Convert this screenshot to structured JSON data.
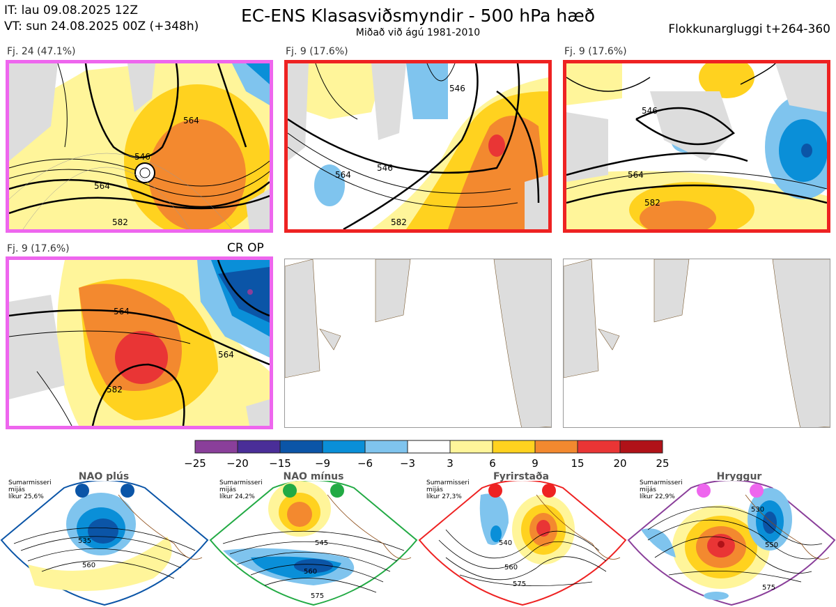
{
  "header": {
    "init": "IT: lau 09.08.2025 12Z",
    "valid": "VT: sun 24.08.2025 00Z  (+348h)",
    "title": "EC-ENS Klasasviðsmyndir - 500 hPa hæð",
    "subtitle": "Miðað við ágú 1981-2010",
    "window": "Flokkunargluggi t+264-360"
  },
  "panels": [
    {
      "label": "Fj. 24 (47.1%)",
      "border": "#ee66ee",
      "contours": [
        "546",
        "564",
        "564",
        "582"
      ]
    },
    {
      "label": "Fj. 9 (17.6%)",
      "border": "#ee2222",
      "contours": [
        "546",
        "546",
        "564",
        "582"
      ]
    },
    {
      "label": "Fj. 9 (17.6%)",
      "border": "#ee2222",
      "contours": [
        "546",
        "564",
        "582"
      ]
    },
    {
      "label": "Fj. 9 (17.6%)",
      "border": "#ee66ee",
      "contours": [
        "564",
        "564",
        "582"
      ],
      "tag": "CR OP"
    }
  ],
  "colorbar": {
    "ticks": [
      "−25",
      "−20",
      "−15",
      "−9",
      "−6",
      "−3",
      "3",
      "6",
      "9",
      "15",
      "20",
      "25"
    ],
    "colors": [
      "#8a3f9a",
      "#4a2e98",
      "#0b55a7",
      "#0a8fd8",
      "#7fc4ee",
      "#ffffff",
      "#fff59a",
      "#ffd21f",
      "#f3892f",
      "#e93535",
      "#b01218"
    ]
  },
  "regimes": [
    {
      "name": "NAO plús",
      "info": "Sumarmisseri\nmijás\nlíkur 25,6%",
      "color": "#0b55a7",
      "labels": [
        "535",
        "560"
      ]
    },
    {
      "name": "NAO mínus",
      "info": "Sumarmisseri\nmijás\nlíkur 24,2%",
      "color": "#22aa44",
      "labels": [
        "545",
        "560",
        "575"
      ]
    },
    {
      "name": "Fyrirstaða",
      "info": "Sumarmisseri\nmijás\nlíkur 27,3%",
      "color": "#ee2222",
      "labels": [
        "540",
        "560",
        "575"
      ]
    },
    {
      "name": "Hryggur",
      "info": "Sumarmisseri\nmijás\nlíkur 22,9%",
      "color": "#ee66ee",
      "labels": [
        "530",
        "550",
        "575"
      ]
    }
  ]
}
